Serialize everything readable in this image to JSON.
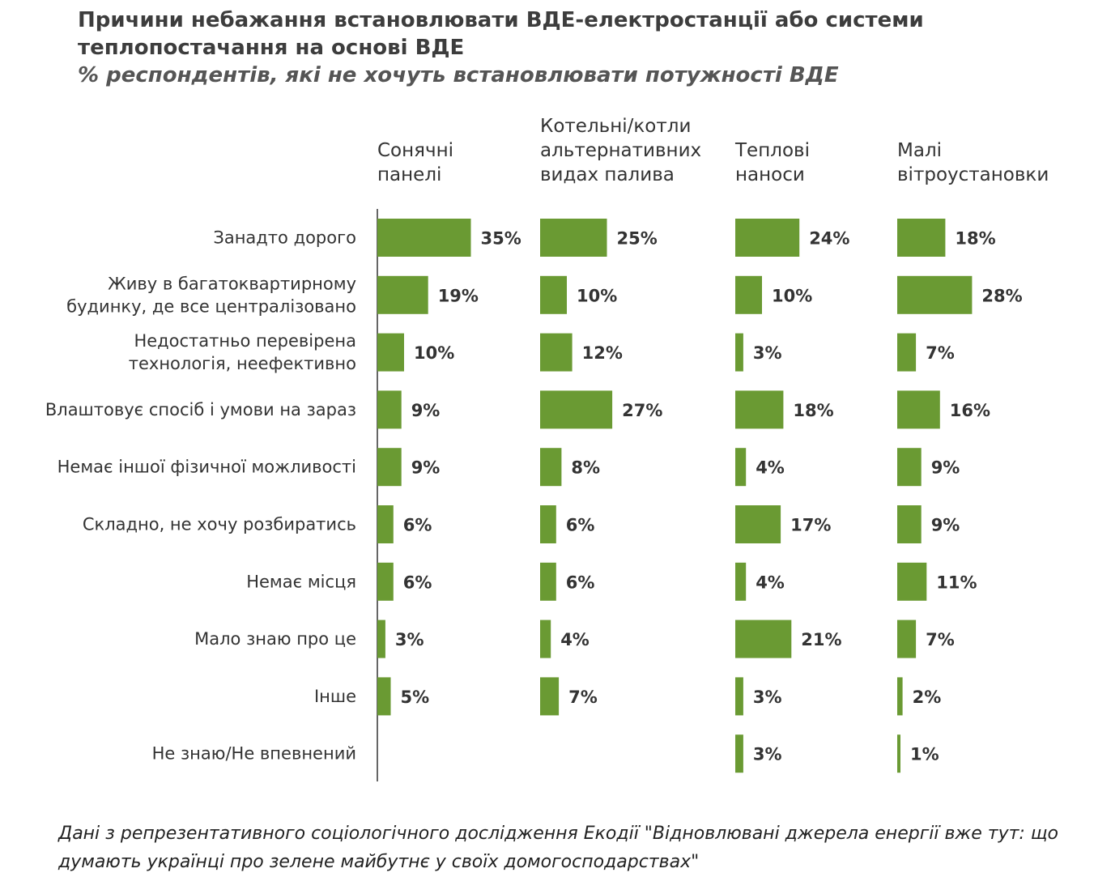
{
  "title": "Причини небажання встановлювати ВДЕ-електростанції або системи теплопостачання на основі ВДЕ",
  "subtitle": "% респондентів, які не хочуть встановлювати потужності ВДЕ",
  "footnote": "Дані з репрезентативного соціологічного дослідження Екодії \"Відновлювані джерела енергії вже тут: що думають українці про зелене майбутнє у своїх домогосподарствах\"",
  "colors": {
    "bar": "#6a9a33",
    "axis": "#333333",
    "label": "#333333",
    "value": "#333333"
  },
  "chart_data": {
    "type": "bar",
    "orientation": "horizontal",
    "layout": "small-multiples",
    "title": "Причини небажання встановлювати ВДЕ-електростанції або системи теплопостачання на основі ВДЕ",
    "subtitle": "% респондентів, які не хочуть встановлювати потужності ВДЕ",
    "unit": "%",
    "categories": [
      [
        "Занадто дорого"
      ],
      [
        "Живу в багатоквартирному",
        "будинку, де все централізовано"
      ],
      [
        "Недостатньо перевірена",
        "технологія, неефективно"
      ],
      [
        "Влаштовує спосіб і умови на зараз"
      ],
      [
        "Немає іншої фізичної можливості"
      ],
      [
        "Складно, не хочу розбиратись"
      ],
      [
        "Немає місця"
      ],
      [
        "Мало знаю про це"
      ],
      [
        "Інше"
      ],
      [
        "Не знаю/Не впевнений"
      ]
    ],
    "series": [
      {
        "name": [
          "Сонячні",
          "панелі"
        ],
        "values": [
          35,
          19,
          10,
          9,
          9,
          6,
          6,
          3,
          5,
          null
        ]
      },
      {
        "name": [
          "Котельні/котли",
          "альтернативних",
          "видах палива"
        ],
        "values": [
          25,
          10,
          12,
          27,
          8,
          6,
          6,
          4,
          7,
          null
        ]
      },
      {
        "name": [
          "Теплові",
          "наноси"
        ],
        "values": [
          24,
          10,
          3,
          18,
          4,
          17,
          4,
          21,
          3,
          3
        ]
      },
      {
        "name": [
          "Малі",
          "вітроустановки"
        ],
        "values": [
          18,
          28,
          7,
          16,
          9,
          9,
          11,
          7,
          2,
          1
        ]
      }
    ],
    "value_labels": true,
    "legend": "none",
    "grid": false
  }
}
